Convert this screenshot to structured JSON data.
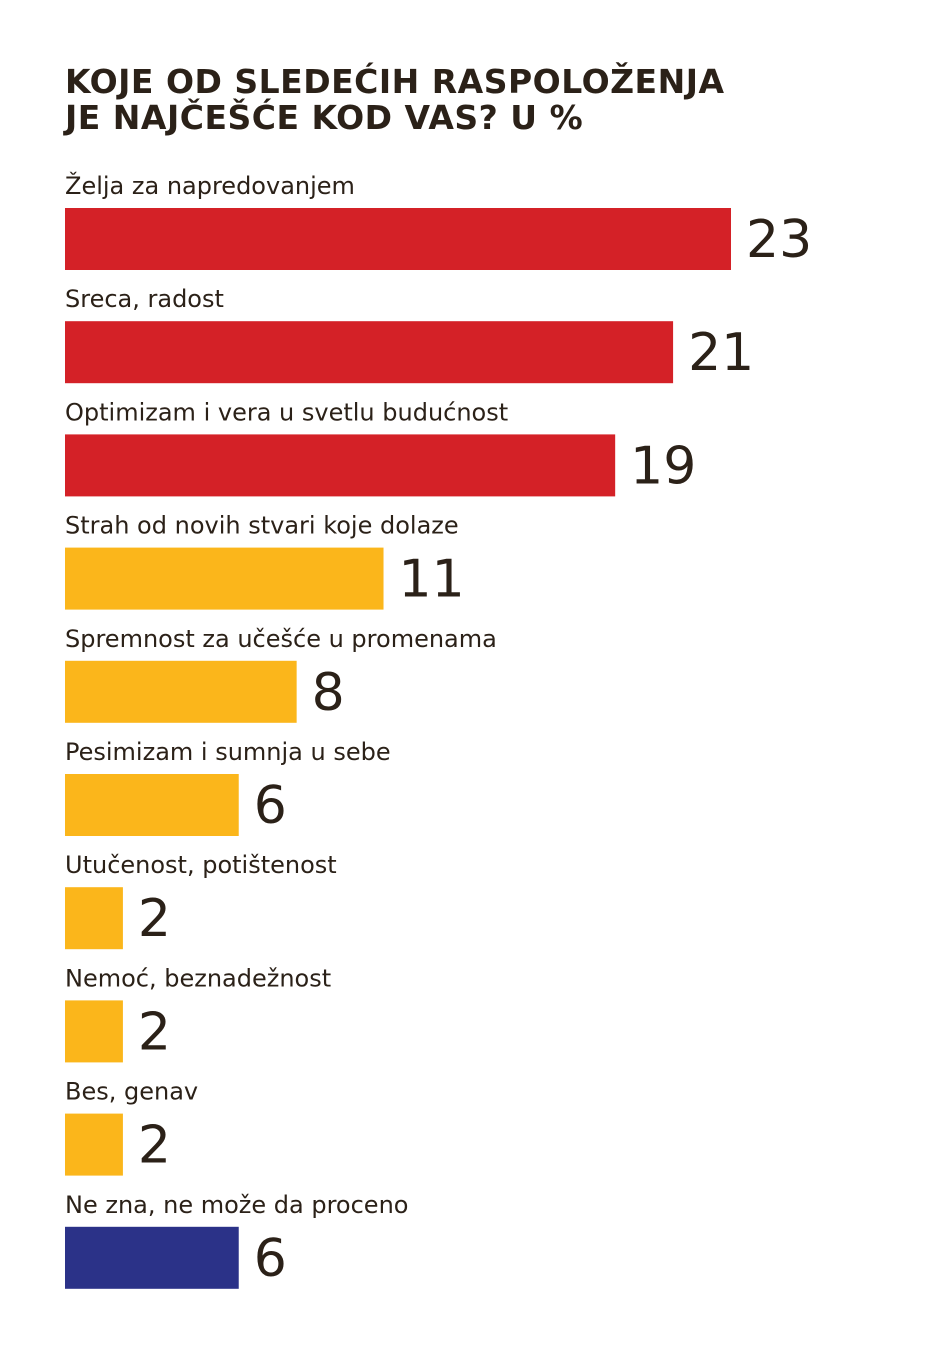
{
  "chart_data": {
    "type": "bar",
    "orientation": "horizontal",
    "title_lines": [
      "KOJE OD SLEDEĆIH RASPOLOŽENJA",
      "JE NAJČEŠĆE KOD VAS? U %"
    ],
    "unit": "%",
    "xlim": [
      0,
      23
    ],
    "items": [
      {
        "label": "Želja za napredovanjem",
        "value": 23,
        "value_label": "23",
        "color": "#d42127"
      },
      {
        "label": "Sreca, radost",
        "value": 21,
        "value_label": "21",
        "color": "#d42127"
      },
      {
        "label": "Optimizam i vera u svetlu budućnost",
        "value": 19,
        "value_label": "19",
        "color": "#d42127"
      },
      {
        "label": "Strah od novih stvari koje dolaze",
        "value": 11,
        "value_label": "11",
        "color": "#fbb61b"
      },
      {
        "label": "Spremnost za učešće u promenama",
        "value": 8,
        "value_label": "8",
        "color": "#fbb61b"
      },
      {
        "label": "Pesimizam i sumnja u sebe",
        "value": 6,
        "value_label": "6",
        "color": "#fbb61b"
      },
      {
        "label": "Utučenost, potištenost",
        "value": 2,
        "value_label": "2",
        "color": "#fbb61b"
      },
      {
        "label": "Nemoć, beznadežnost",
        "value": 2,
        "value_label": "2",
        "color": "#fbb61b"
      },
      {
        "label": "Bes, genav",
        "value": 2,
        "value_label": "2",
        "color": "#fbb61b"
      },
      {
        "label": "Ne zna, ne može da proceno",
        "value": 6,
        "value_label": "6",
        "color": "#2b3288"
      }
    ]
  }
}
